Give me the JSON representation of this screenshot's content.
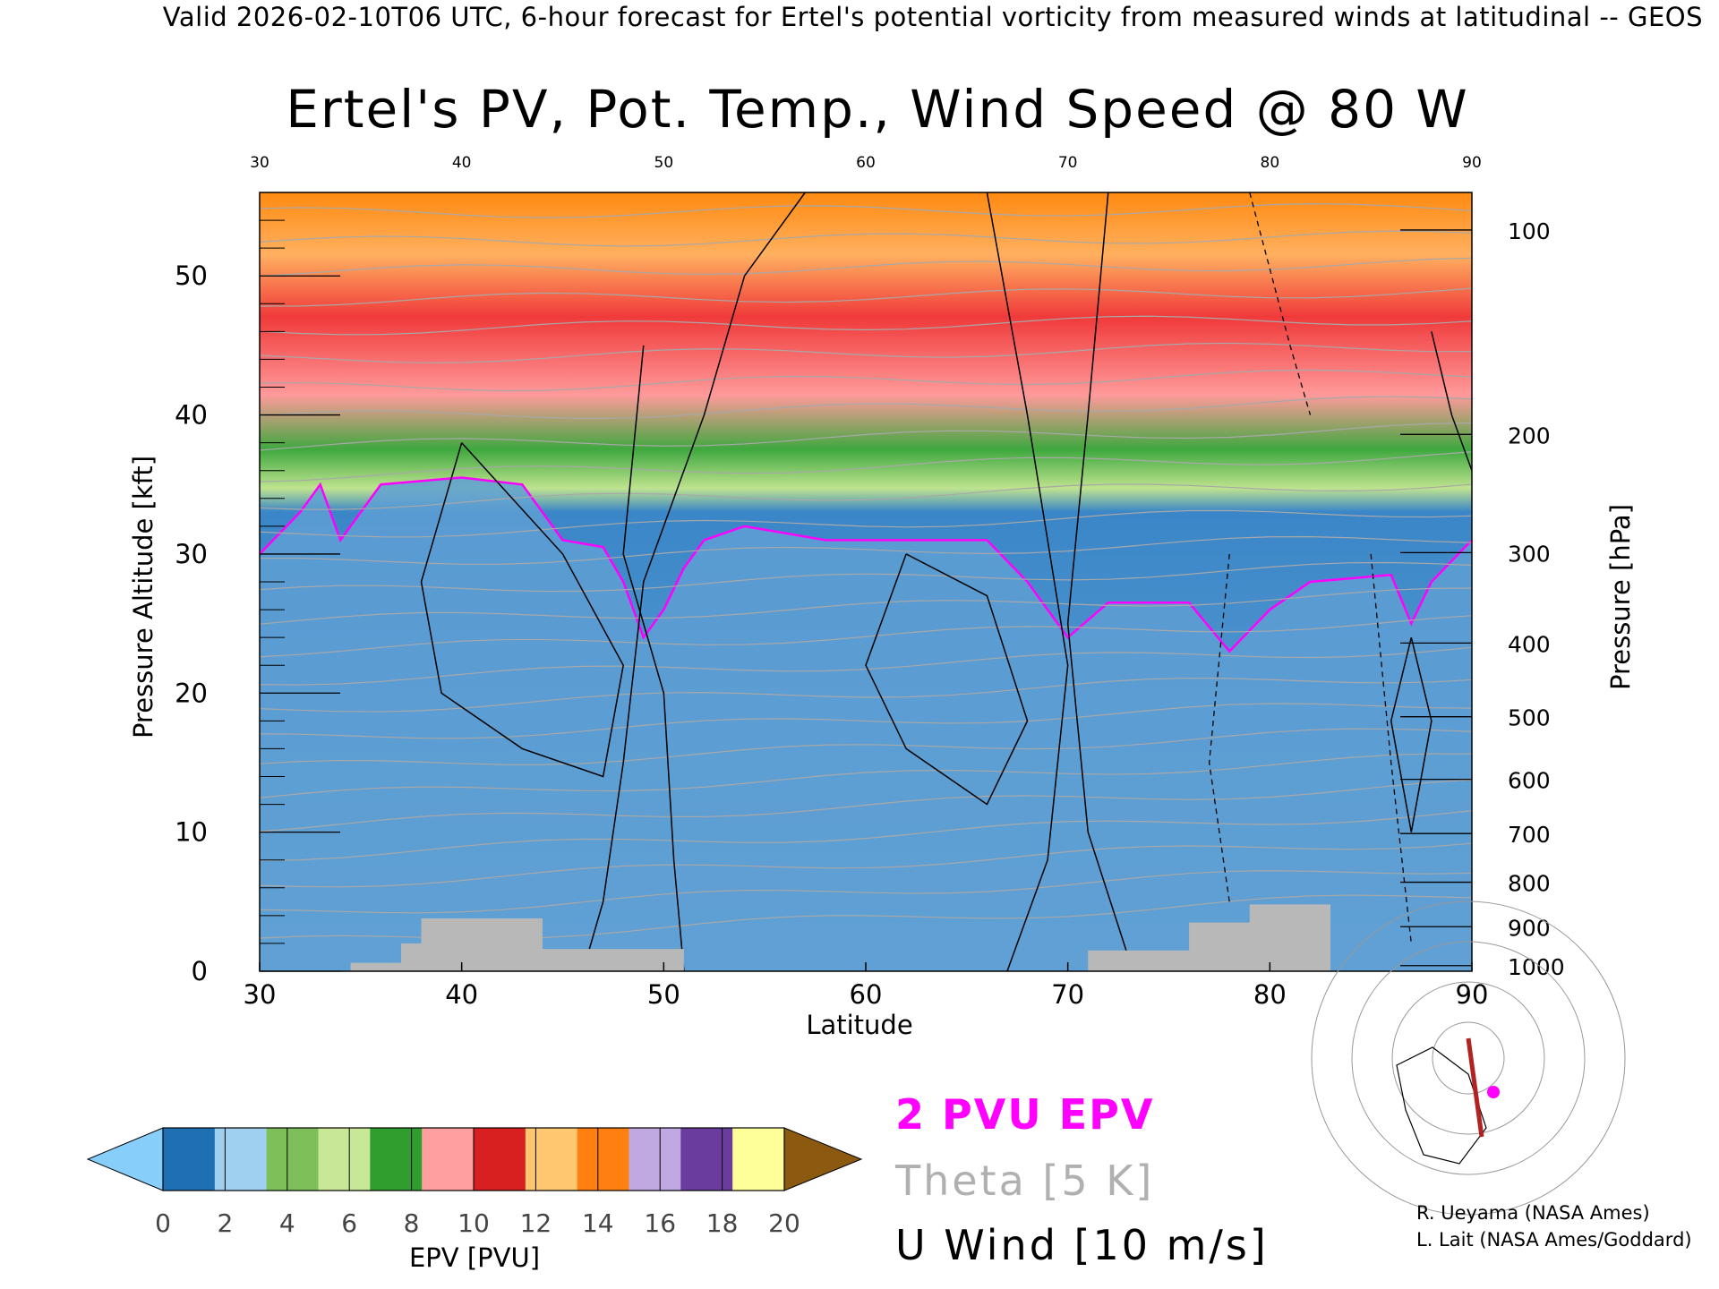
{
  "header": "Valid 2026-02-10T06 UTC, 6-hour forecast for Ertel's potential vorticity from measured winds at latitudinal -- GEOS",
  "title": "Ertel's PV, Pot. Temp., Wind Speed @ 80 W",
  "chart_data": {
    "type": "heatmap",
    "xlabel": "Latitude",
    "ylabel": "Pressure Altitude [kft]",
    "y2label": "Pressure [hPa]",
    "xlim": [
      30,
      90
    ],
    "ylim": [
      0,
      56
    ],
    "x_ticks": [
      "30",
      "40",
      "50",
      "60",
      "70",
      "80",
      "90"
    ],
    "y_ticks": [
      "0",
      "10",
      "20",
      "30",
      "40",
      "50"
    ],
    "y2_ticks": [
      {
        "label": "100",
        "kft": 53.3
      },
      {
        "label": "200",
        "kft": 38.6
      },
      {
        "label": "300",
        "kft": 30.1
      },
      {
        "label": "400",
        "kft": 23.6
      },
      {
        "label": "500",
        "kft": 18.3
      },
      {
        "label": "600",
        "kft": 13.8
      },
      {
        "label": "700",
        "kft": 9.9
      },
      {
        "label": "800",
        "kft": 6.4
      },
      {
        "label": "900",
        "kft": 3.2
      },
      {
        "label": "1000",
        "kft": 0.4
      }
    ],
    "colorbar": {
      "label": "EPV [PVU]",
      "ticks": [
        "0",
        "2",
        "4",
        "6",
        "8",
        "10",
        "12",
        "14",
        "16",
        "18",
        "20"
      ],
      "colors": [
        "#87cefa",
        "#1e6fb4",
        "#a0d0f0",
        "#7fbf5a",
        "#c8e898",
        "#2f9e2f",
        "#ff9fa0",
        "#d82020",
        "#ffc870",
        "#ff8010",
        "#c0a8e0",
        "#6a3c9e",
        "#ffff9a",
        "#8b5a10"
      ]
    },
    "tropopause_2pvu": [
      [
        30,
        30
      ],
      [
        32,
        33
      ],
      [
        33,
        35
      ],
      [
        34,
        31
      ],
      [
        36,
        35
      ],
      [
        40,
        35.5
      ],
      [
        43,
        35
      ],
      [
        45,
        31
      ],
      [
        47,
        30.5
      ],
      [
        48,
        28
      ],
      [
        49,
        24
      ],
      [
        50,
        26
      ],
      [
        51,
        29
      ],
      [
        52,
        31
      ],
      [
        54,
        32
      ],
      [
        58,
        31
      ],
      [
        62,
        31
      ],
      [
        66,
        31
      ],
      [
        68,
        28
      ],
      [
        70,
        24
      ],
      [
        72,
        26.5
      ],
      [
        74,
        26.5
      ],
      [
        76,
        26.5
      ],
      [
        78,
        23
      ],
      [
        80,
        26
      ],
      [
        82,
        28
      ],
      [
        86,
        28.5
      ],
      [
        87,
        25
      ],
      [
        88,
        28
      ],
      [
        90,
        31
      ]
    ],
    "series_labels": [
      "2 PVU EPV",
      "Theta [5 K]",
      "U Wind [10 m/s]"
    ]
  },
  "legend": {
    "epv": "2 PVU EPV",
    "theta": "Theta [5 K]",
    "wind": "U Wind [10 m/s]",
    "colors": {
      "epv": "#ff00ff",
      "theta": "#b0b0b0",
      "wind": "#000000"
    }
  },
  "credits": {
    "line1": "R. Ueyama (NASA Ames)",
    "line2": "L. Lait (NASA Ames/Goddard)"
  }
}
